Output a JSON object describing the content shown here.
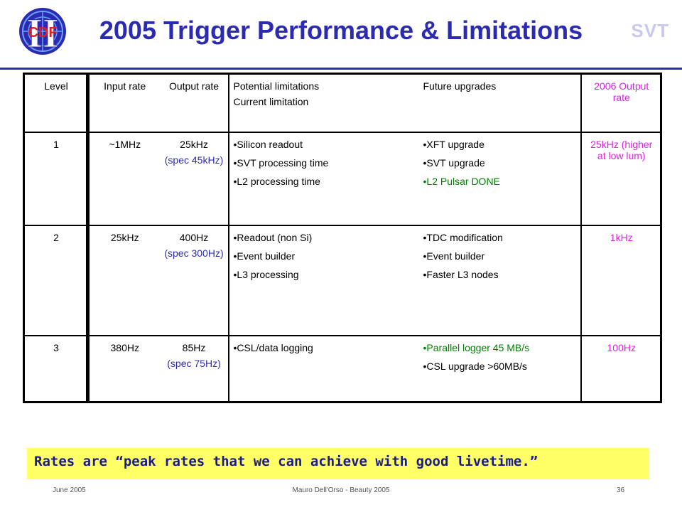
{
  "header": {
    "logo_text": "CDF",
    "title": "2005 Trigger Performance & Limitations",
    "corner_label": "SVT"
  },
  "table": {
    "headers": {
      "level": "Level",
      "input_rate": "Input rate",
      "output_rate": "Output rate",
      "limitations": [
        "Potential limitations",
        "Current limitation"
      ],
      "upgrades": "Future upgrades",
      "output_2006": "2006 Output rate"
    },
    "rows": [
      {
        "level": "1",
        "input": "~1MHz",
        "output": "25kHz",
        "spec": "(spec 45kHz)",
        "limitations": [
          "Silicon readout",
          "SVT processing time",
          "L2 processing time"
        ],
        "upgrades": [
          {
            "text": "XFT upgrade",
            "highlight": false
          },
          {
            "text": "SVT upgrade",
            "highlight": false
          },
          {
            "text": "L2 Pulsar DONE",
            "highlight": true
          }
        ],
        "rate2006": "25kHz (higher at low lum)"
      },
      {
        "level": "2",
        "input": "25kHz",
        "output": "400Hz",
        "spec": "(spec 300Hz)",
        "limitations": [
          "Readout (non Si)",
          "Event builder",
          "L3 processing"
        ],
        "upgrades": [
          {
            "text": "TDC modification",
            "highlight": false
          },
          {
            "text": "Event builder",
            "highlight": false
          },
          {
            "text": "Faster L3 nodes",
            "highlight": false
          }
        ],
        "rate2006": "1kHz"
      },
      {
        "level": "3",
        "input": "380Hz",
        "output": "85Hz",
        "spec": "(spec 75Hz)",
        "limitations": [
          "CSL/data logging"
        ],
        "upgrades": [
          {
            "text": "Parallel logger 45 MB/s",
            "highlight": true
          },
          {
            "text": "CSL upgrade >60MB/s",
            "highlight": false
          }
        ],
        "rate2006": "100Hz"
      }
    ]
  },
  "banner": "Rates are “peak rates that we can achieve with good livetime.”",
  "footer": {
    "date": "June 2005",
    "author": "Mauro Dell'Orso - Beauty 2005",
    "page": "36"
  },
  "colors": {
    "title": "#2b2bb0",
    "spec": "#2b2bb0",
    "highlight_green": "#008000",
    "rate_2006": "#e020e0",
    "banner_bg": "#ffff66"
  }
}
